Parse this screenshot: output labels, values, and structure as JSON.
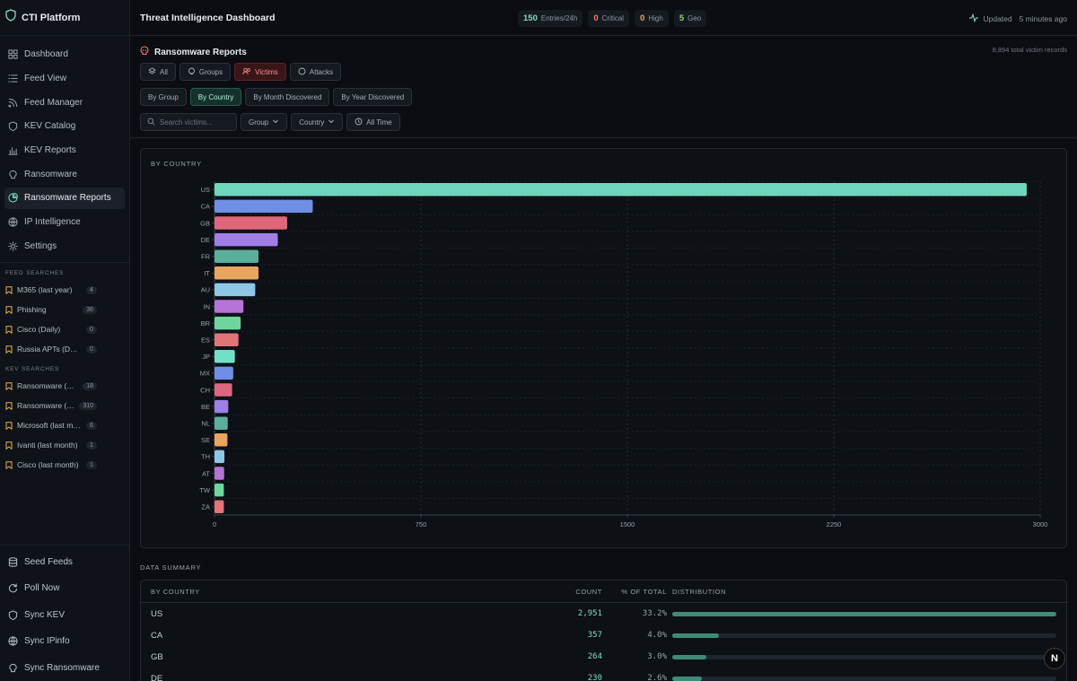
{
  "app": {
    "title": "CTI Platform"
  },
  "sidebar": {
    "nav": [
      {
        "label": "Dashboard",
        "icon": "dashboard-icon"
      },
      {
        "label": "Feed View",
        "icon": "list-icon"
      },
      {
        "label": "Feed Manager",
        "icon": "rss-icon"
      },
      {
        "label": "KEV Catalog",
        "icon": "shield-icon"
      },
      {
        "label": "KEV Reports",
        "icon": "bar-chart-icon"
      },
      {
        "label": "Ransomware",
        "icon": "skull-icon"
      },
      {
        "label": "Ransomware Reports",
        "icon": "pie-chart-icon",
        "active": true
      },
      {
        "label": "IP Intelligence",
        "icon": "globe-icon"
      },
      {
        "label": "Settings",
        "icon": "gear-icon"
      }
    ],
    "feed_searches_label": "FEED SEARCHES",
    "feed_searches": [
      {
        "label": "M365 (last year)",
        "count": "4"
      },
      {
        "label": "Phishing",
        "count": "36"
      },
      {
        "label": "Cisco (Daily)",
        "count": "0"
      },
      {
        "label": "Russia APTs (Daily)",
        "count": "0"
      }
    ],
    "kev_searches_label": "KEV SEARCHES",
    "kev_searches": [
      {
        "label": "Ransomware (Ye...",
        "count": "18"
      },
      {
        "label": "Ransomware (al...",
        "count": "310"
      },
      {
        "label": "Microsoft (last mo...",
        "count": "6"
      },
      {
        "label": "Ivanti (last month)",
        "count": "1"
      },
      {
        "label": "Cisco (last month)",
        "count": "1"
      }
    ],
    "bottom": [
      {
        "label": "Seed Feeds",
        "icon": "database-icon"
      },
      {
        "label": "Poll Now",
        "icon": "refresh-icon"
      },
      {
        "label": "Sync KEV",
        "icon": "shield-icon"
      },
      {
        "label": "Sync IPinfo",
        "icon": "globe-icon"
      },
      {
        "label": "Sync Ransomware",
        "icon": "skull-icon"
      }
    ]
  },
  "topbar": {
    "title": "Threat Intelligence Dashboard",
    "stats": [
      {
        "value": "150",
        "label": "Entries/24h",
        "color": "#7de0c2"
      },
      {
        "value": "0",
        "label": "Critical",
        "color": "#ff7a6b"
      },
      {
        "value": "0",
        "label": "High",
        "color": "#f5a35b"
      },
      {
        "value": "5",
        "label": "Geo",
        "color": "#8bd37a"
      }
    ],
    "updated_label": "Updated",
    "updated_time": "5 minutes ago"
  },
  "report": {
    "title": "Ransomware Reports",
    "total": "8,894 total victim records",
    "view_tabs": [
      "All",
      "Groups",
      "Victims",
      "Attacks"
    ],
    "group_tabs": [
      "By Group",
      "By Country",
      "By Month Discovered",
      "By Year Discovered"
    ],
    "search_placeholder": "Search victims...",
    "filters": {
      "group": "Group",
      "country": "Country",
      "time": "All Time"
    }
  },
  "chart_data": {
    "type": "bar",
    "orientation": "horizontal",
    "title": "BY COUNTRY",
    "categories": [
      "US",
      "CA",
      "GB",
      "DE",
      "FR",
      "IT",
      "AU",
      "IN",
      "BR",
      "ES",
      "JP",
      "MX",
      "CH",
      "BE",
      "NL",
      "SE",
      "TH",
      "AT",
      "TW",
      "ZA"
    ],
    "values": [
      2951,
      357,
      264,
      230,
      160,
      160,
      148,
      105,
      95,
      87,
      74,
      68,
      64,
      50,
      48,
      47,
      36,
      35,
      34,
      34
    ],
    "xlim": [
      0,
      3000
    ],
    "xticks": [
      "0",
      "750",
      "1500",
      "2250",
      "3000"
    ],
    "grid": true,
    "colors": [
      "#6fd6be",
      "#6f8fe6",
      "#e0667a",
      "#a07ee6",
      "#5aae9c",
      "#e9a460",
      "#8ec6e6",
      "#b574d6",
      "#6ed69c",
      "#e07476",
      "#72e0c8",
      "#6f8fe6",
      "#e06680",
      "#9b80e6",
      "#5aae9c",
      "#e9a460",
      "#8ec6e6",
      "#b574d6",
      "#6ed69c",
      "#e07476"
    ]
  },
  "summary": {
    "label": "DATA SUMMARY",
    "headers": {
      "name": "BY COUNTRY",
      "count": "COUNT",
      "pct": "% OF TOTAL",
      "dist": "DISTRIBUTION"
    },
    "rows": [
      {
        "name": "US",
        "count": "2,951",
        "pct": "33.2%",
        "fraction": 1.0
      },
      {
        "name": "CA",
        "count": "357",
        "pct": "4.0%",
        "fraction": 0.121
      },
      {
        "name": "GB",
        "count": "264",
        "pct": "3.0%",
        "fraction": 0.089
      },
      {
        "name": "DE",
        "count": "230",
        "pct": "2.6%",
        "fraction": 0.078
      }
    ]
  },
  "fab_label": "N"
}
